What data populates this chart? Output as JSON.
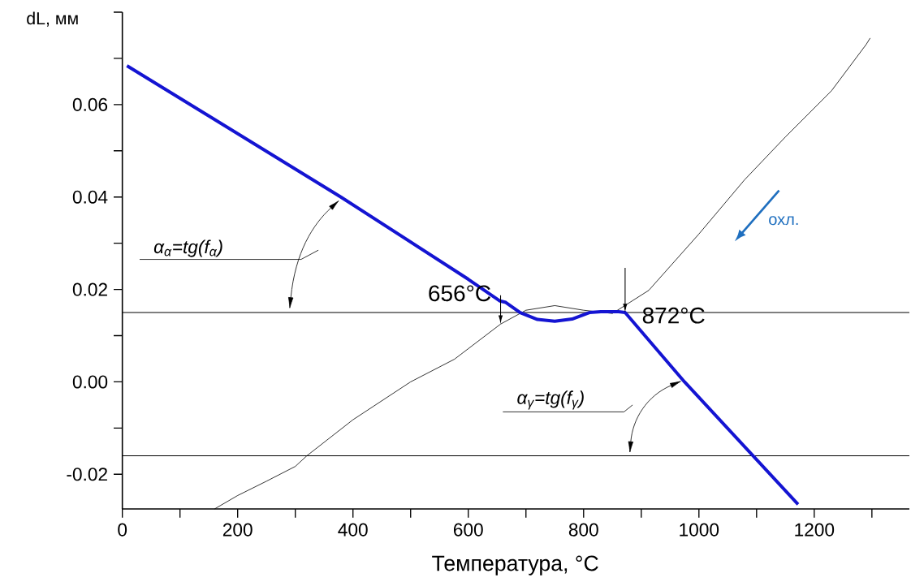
{
  "chart_data": {
    "type": "line",
    "xlabel": "Температура, °C",
    "ylabel": "dL, мм",
    "xlim": [
      0,
      1365
    ],
    "ylim": [
      -0.0275,
      0.08
    ],
    "xticks": [
      0,
      {
        "value": 100,
        "label": null
      },
      200,
      {
        "value": 300,
        "label": null
      },
      400,
      {
        "value": 500,
        "label": null
      },
      600,
      {
        "value": 700,
        "label": null
      },
      800,
      {
        "value": 900,
        "label": null
      },
      1000,
      {
        "value": 1100,
        "label": null
      },
      1200,
      {
        "value": 1300,
        "label": null
      }
    ],
    "yticks": [
      -0.02,
      {
        "value": -0.01,
        "label": null
      },
      {
        "value": 0,
        "label": "0.00"
      },
      {
        "value": 0.01,
        "label": null
      },
      0.02,
      {
        "value": 0.03,
        "label": null
      },
      0.04,
      {
        "value": 0.05,
        "label": null
      },
      0.06,
      {
        "value": 0.07,
        "label": null
      },
      {
        "value": 0.08,
        "label": null
      }
    ],
    "series": [
      {
        "color": "#000000",
        "x": [
          160,
          200,
          250,
          300,
          320,
          400,
          500,
          576,
          656,
          700,
          750,
          800,
          850,
          913,
          1000,
          1079,
          1150,
          1230,
          1290,
          1297
        ],
        "values": [
          -0.0275,
          -0.0246,
          -0.0215,
          -0.0183,
          -0.016,
          -0.0082,
          0.0,
          0.0049,
          0.0125,
          0.0155,
          0.0165,
          0.0155,
          0.0148,
          0.0198,
          0.032,
          0.0437,
          0.053,
          0.063,
          0.073,
          0.0744
        ]
      },
      {
        "color": "#1414d2",
        "x": [
          8,
          379,
          600,
          655,
          665,
          690,
          720,
          750,
          780,
          810,
          830,
          860,
          872,
          975,
          1172
        ],
        "values": [
          0.0684,
          0.04,
          0.0222,
          0.0175,
          0.0172,
          0.015,
          0.0135,
          0.0131,
          0.0136,
          0.015,
          0.0152,
          0.0152,
          0.015,
          0.0,
          -0.0265
        ]
      }
    ],
    "ref_lines": [
      {
        "axis": "y",
        "value": 0.015,
        "color": "#000000"
      },
      {
        "axis": "y",
        "value": -0.016,
        "color": "#000000"
      }
    ],
    "annotations": [
      {
        "text": "656°C",
        "x": 656,
        "y": 0.0125
      },
      {
        "text": "872°C",
        "x": 872,
        "y": 0.015
      },
      "охл.",
      "α$_{α}$=tg(f$_{α}$)",
      "α$_{γ}$=tg(f$_{γ}$)"
    ]
  }
}
